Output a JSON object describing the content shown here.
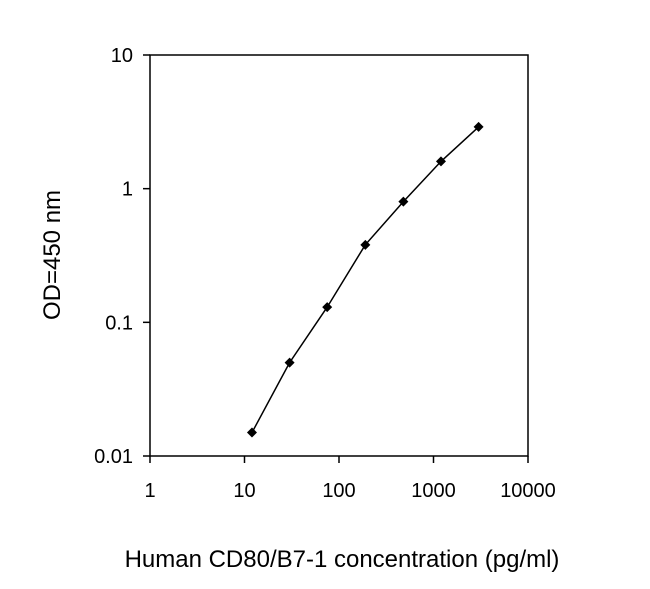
{
  "chart_data": {
    "type": "line",
    "title": "",
    "xlabel": "Human CD80/B7-1 concentration (pg/ml)",
    "ylabel": "OD=450 nm",
    "x_scale": "log",
    "y_scale": "log",
    "xlim": [
      1,
      10000
    ],
    "ylim": [
      0.01,
      10
    ],
    "x_ticks": [
      1,
      10,
      100,
      1000,
      10000
    ],
    "x_tick_labels": [
      "1",
      "10",
      "100",
      "1000",
      "10000"
    ],
    "y_ticks": [
      0.01,
      0.1,
      1,
      10
    ],
    "y_tick_labels": [
      "0.01",
      "0.1",
      "1",
      "10"
    ],
    "grid": false,
    "legend": "none",
    "series": [
      {
        "x": [
          12,
          30,
          75,
          190,
          480,
          1200,
          3000
        ],
        "y": [
          0.015,
          0.05,
          0.13,
          0.38,
          0.8,
          1.6,
          2.9
        ],
        "color": "#000000",
        "marker": "diamond"
      }
    ]
  }
}
